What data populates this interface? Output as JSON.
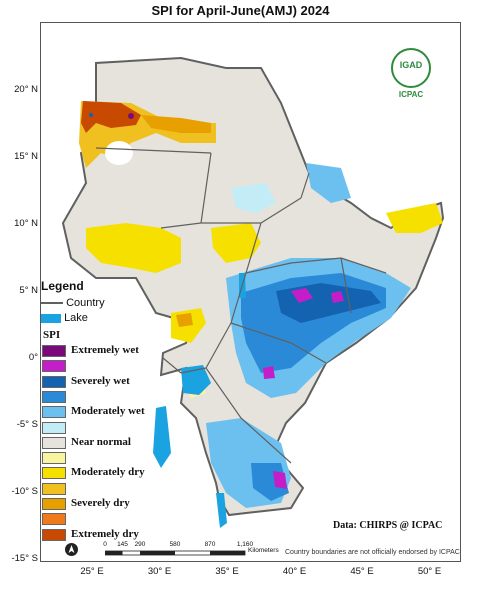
{
  "title": "SPI  for  April-June(AMJ) 2024",
  "axes": {
    "lat_labels": [
      {
        "text": "20° N",
        "deg": 20
      },
      {
        "text": "15° N",
        "deg": 15
      },
      {
        "text": "10° N",
        "deg": 10
      },
      {
        "text": "5° N",
        "deg": 5
      },
      {
        "text": "0°",
        "deg": 0
      },
      {
        "text": "-5° S",
        "deg": -5
      },
      {
        "text": "-10° S",
        "deg": -10
      },
      {
        "text": "-15° S",
        "deg": -15
      }
    ],
    "lon_labels": [
      {
        "text": "25° E",
        "deg": 25
      },
      {
        "text": "30° E",
        "deg": 30
      },
      {
        "text": "35° E",
        "deg": 35
      },
      {
        "text": "40° E",
        "deg": 40
      },
      {
        "text": "45° E",
        "deg": 45
      },
      {
        "text": "50° E",
        "deg": 50
      }
    ]
  },
  "logo": {
    "top_text": "IGAD",
    "bottom_text": "ICPAC"
  },
  "legend": {
    "title": "Legend",
    "country_label": "Country",
    "lake_label": "Lake",
    "spi_title": "SPI",
    "categories": [
      {
        "label": "Extremely wet",
        "color": "#7a0a7a"
      },
      {
        "label": "",
        "color": "#c41ec9"
      },
      {
        "label": "Severely wet",
        "color": "#1463b0"
      },
      {
        "label": "",
        "color": "#2a8ad8"
      },
      {
        "label": "Moderately wet",
        "color": "#6cc0f0"
      },
      {
        "label": "",
        "color": "#c4ecf7"
      },
      {
        "label": "Near normal",
        "color": "#e6e3dc"
      },
      {
        "label": "",
        "color": "#f8f5a0"
      },
      {
        "label": "Moderately dry",
        "color": "#f6e000"
      },
      {
        "label": "",
        "color": "#f0c020"
      },
      {
        "label": "Severely dry",
        "color": "#e8a000"
      },
      {
        "label": "",
        "color": "#f07a1a"
      },
      {
        "label": "Extremely dry",
        "color": "#c84a00"
      }
    ]
  },
  "scale_bar": {
    "ticks": [
      "0",
      "145",
      "290",
      "580",
      "870",
      "1,160"
    ],
    "unit": "Kilometers"
  },
  "data_credit": "Data: CHIRPS @ ICPAC",
  "disclaimer": "Country boundaries are not officially endorsed by ICPAC",
  "colors": {
    "near_normal": "#e6e3dc",
    "lake": "#1aa3e0",
    "border": "#606060"
  }
}
